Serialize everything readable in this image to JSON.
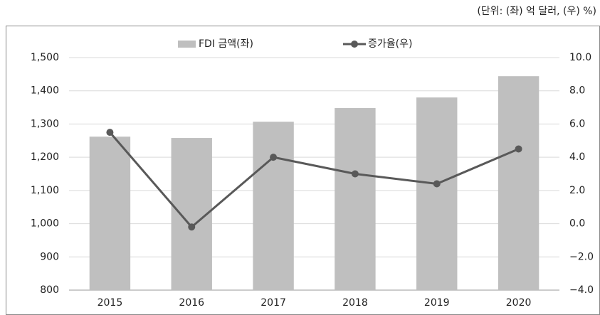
{
  "chart_data": {
    "type": "bar+line",
    "annotation": "(단위: (좌) 억 달러, (우) %)",
    "categories": [
      "2015",
      "2016",
      "2017",
      "2018",
      "2019",
      "2020"
    ],
    "series": [
      {
        "name": "FDI 금액(좌)",
        "type": "bar",
        "color": "#bfbfbf",
        "values": [
          1262,
          1258,
          1307,
          1348,
          1380,
          1444
        ]
      },
      {
        "name": "증가율(우)",
        "type": "line",
        "axis": "y2",
        "color": "#595959",
        "values": [
          5.5,
          -0.2,
          4.0,
          3.0,
          2.4,
          4.5
        ]
      }
    ],
    "ylim": [
      800,
      1500
    ],
    "yticks": [
      800,
      900,
      {
        "value": 1000,
        "label": "1,000"
      },
      {
        "value": 1100,
        "label": "1,100"
      },
      {
        "value": 1200,
        "label": "1,200"
      },
      {
        "value": 1300,
        "label": "1,300"
      },
      {
        "value": 1400,
        "label": "1,400"
      },
      {
        "value": 1500,
        "label": "1,500"
      }
    ],
    "y2lim": [
      -4,
      10
    ],
    "y2ticks": [
      {
        "value": -4,
        "label": "−4.0"
      },
      {
        "value": -2,
        "label": "−2.0"
      },
      {
        "value": 0,
        "label": "0.0"
      },
      {
        "value": 2,
        "label": "2.0"
      },
      {
        "value": 4,
        "label": "4.0"
      },
      {
        "value": 6,
        "label": "6.0"
      },
      {
        "value": 8,
        "label": "8.0"
      },
      {
        "value": 10,
        "label": "10.0"
      }
    ],
    "grid": true,
    "legend": "top"
  }
}
